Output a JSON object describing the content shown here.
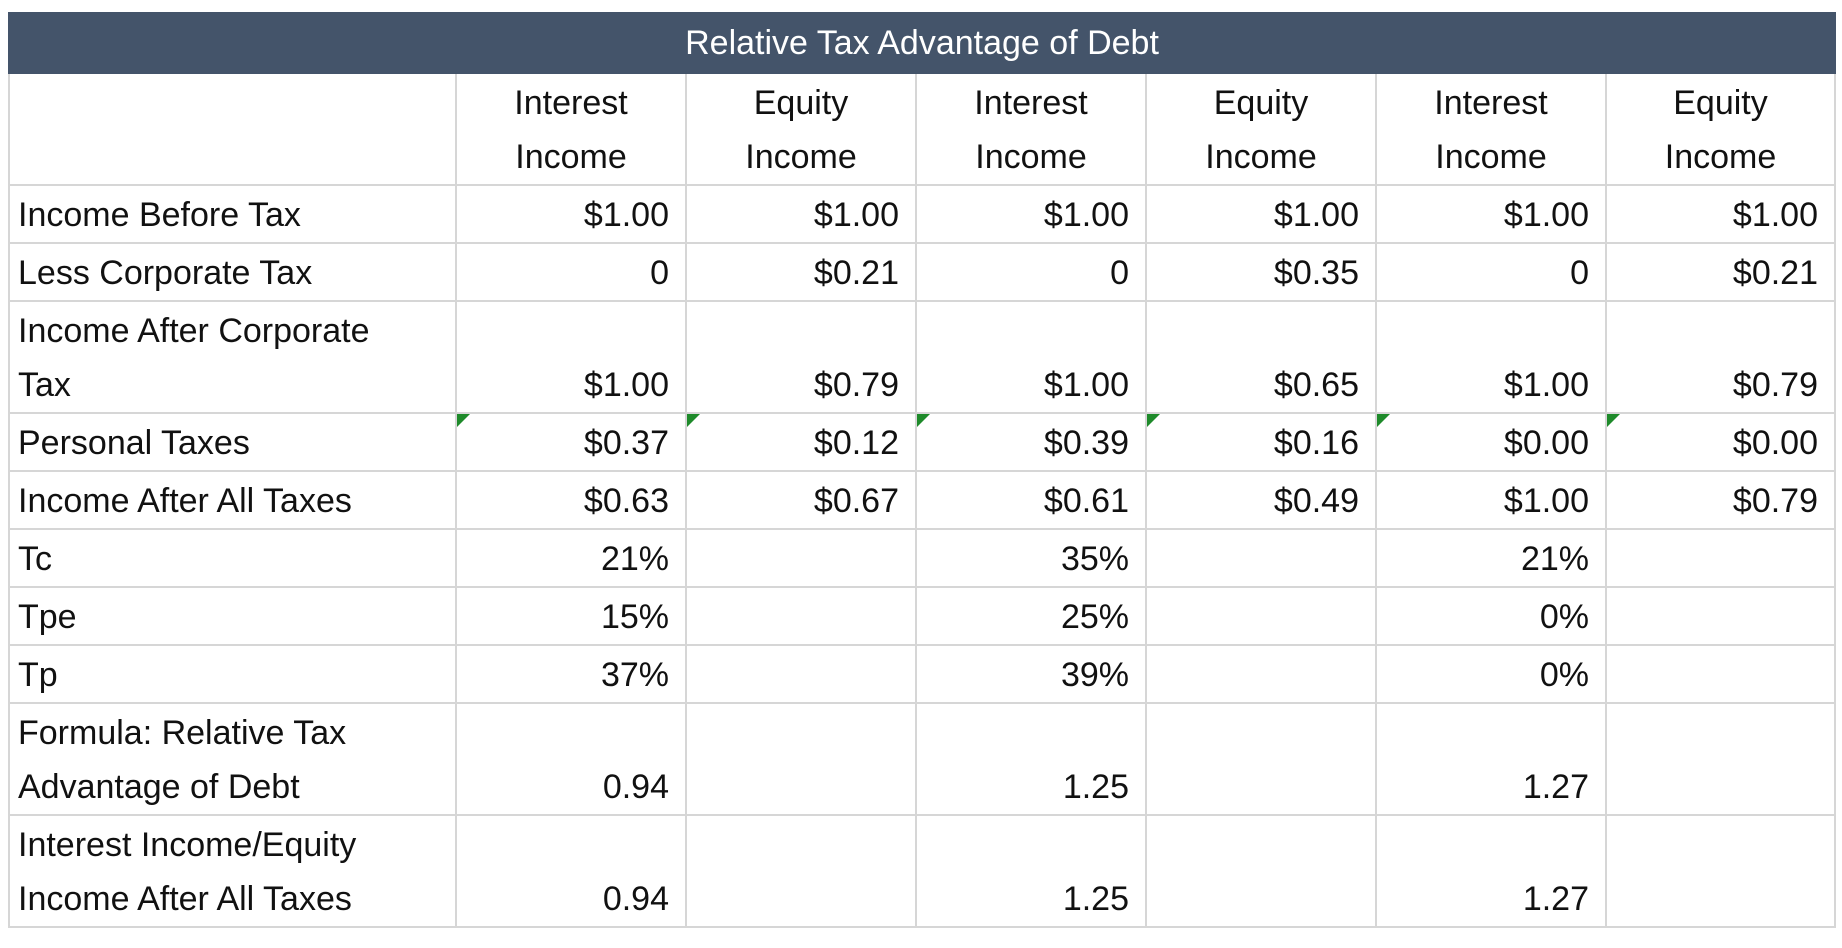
{
  "title": "Relative Tax Advantage of Debt",
  "headers": [
    [
      "Interest",
      "Income"
    ],
    [
      "Equity",
      "Income"
    ],
    [
      "Interest",
      "Income"
    ],
    [
      "Equity",
      "Income"
    ],
    [
      "Interest",
      "Income"
    ],
    [
      "Equity",
      "Income"
    ]
  ],
  "rows": [
    {
      "label": [
        "Income Before Tax"
      ],
      "values": [
        "$1.00",
        "$1.00",
        "$1.00",
        "$1.00",
        "$1.00",
        "$1.00"
      ]
    },
    {
      "label": [
        "Less Corporate Tax"
      ],
      "values": [
        "0",
        "$0.21",
        "0",
        "$0.35",
        "0",
        "$0.21"
      ]
    },
    {
      "label": [
        "Income After Corporate",
        "Tax"
      ],
      "values": [
        "$1.00",
        "$0.79",
        "$1.00",
        "$0.65",
        "$1.00",
        "$0.79"
      ]
    },
    {
      "label": [
        "Personal Taxes"
      ],
      "values": [
        "$0.37",
        "$0.12",
        "$0.39",
        "$0.16",
        "$0.00",
        "$0.00"
      ]
    },
    {
      "label": [
        "Income After All Taxes"
      ],
      "values": [
        "$0.63",
        "$0.67",
        "$0.61",
        "$0.49",
        "$1.00",
        "$0.79"
      ]
    },
    {
      "label": [
        "Tc"
      ],
      "values": [
        "21%",
        "",
        "35%",
        "",
        "21%",
        ""
      ]
    },
    {
      "label": [
        "Tpe"
      ],
      "values": [
        "15%",
        "",
        "25%",
        "",
        "0%",
        ""
      ]
    },
    {
      "label": [
        "Tp"
      ],
      "values": [
        "37%",
        "",
        "39%",
        "",
        "0%",
        ""
      ]
    },
    {
      "label": [
        "Formula: Relative Tax",
        "Advantage of Debt"
      ],
      "values": [
        "0.94",
        "",
        "1.25",
        "",
        "1.27",
        ""
      ]
    },
    {
      "label": [
        "Interest Income/Equity",
        "Income After All Taxes"
      ],
      "values": [
        "0.94",
        "",
        "1.25",
        "",
        "1.27",
        ""
      ]
    }
  ]
}
